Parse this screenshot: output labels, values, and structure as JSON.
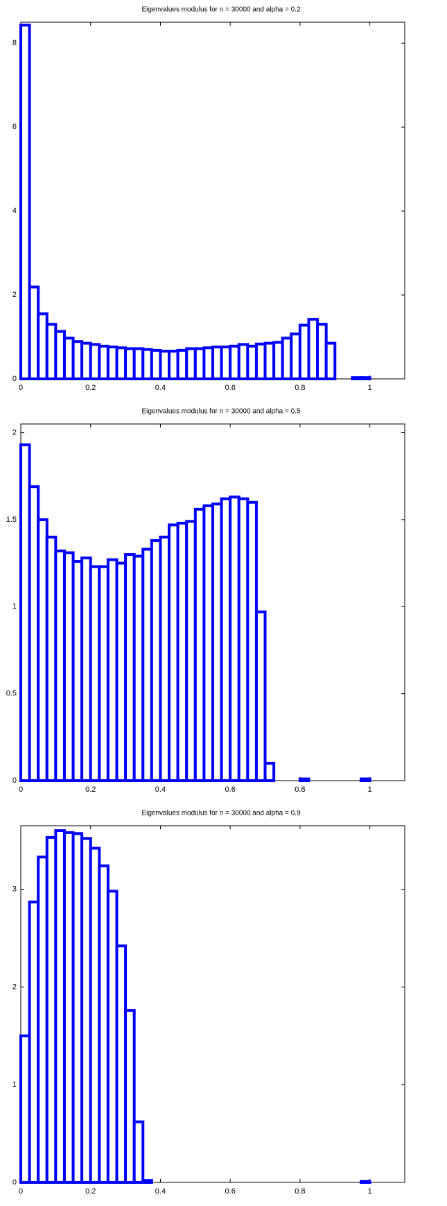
{
  "chart_data": [
    {
      "type": "histogram",
      "title": "Eigenvalues modulus for n = 30000 and alpha = 0.2",
      "color": "#0000ff",
      "bins": [
        0,
        0.025,
        0.05,
        0.075,
        0.1,
        0.125,
        0.15,
        0.175,
        0.2,
        0.225,
        0.25,
        0.275,
        0.3,
        0.325,
        0.35,
        0.375,
        0.4,
        0.425,
        0.45,
        0.475,
        0.5,
        0.525,
        0.55,
        0.575,
        0.6,
        0.625,
        0.65,
        0.675,
        0.7,
        0.725,
        0.75,
        0.775,
        0.8,
        0.825,
        0.85,
        0.875,
        0.9,
        0.925,
        0.95,
        0.975,
        1
      ],
      "values": [
        8.43,
        2.19,
        1.55,
        1.3,
        1.13,
        0.97,
        0.89,
        0.85,
        0.82,
        0.78,
        0.76,
        0.74,
        0.72,
        0.72,
        0.7,
        0.68,
        0.66,
        0.66,
        0.68,
        0.72,
        0.72,
        0.74,
        0.76,
        0.76,
        0.78,
        0.82,
        0.78,
        0.83,
        0.85,
        0.87,
        0.97,
        1.07,
        1.28,
        1.42,
        1.3,
        0.85,
        0,
        0,
        0.03,
        0.03
      ],
      "xlim": [
        0,
        1.1
      ],
      "ylim": [
        0,
        8.5
      ],
      "xticks": [
        0,
        0.2,
        0.4,
        0.6,
        0.8,
        1
      ],
      "yticks": [
        0,
        2,
        4,
        6,
        8
      ]
    },
    {
      "type": "histogram",
      "title": "Eigenvalues modulus for n = 30000 and alpha = 0.5",
      "color": "#0000ff",
      "bins": [
        0,
        0.025,
        0.05,
        0.075,
        0.1,
        0.125,
        0.15,
        0.175,
        0.2,
        0.225,
        0.25,
        0.275,
        0.3,
        0.325,
        0.35,
        0.375,
        0.4,
        0.425,
        0.45,
        0.475,
        0.5,
        0.525,
        0.55,
        0.575,
        0.6,
        0.625,
        0.65,
        0.675,
        0.7,
        0.725,
        0.75,
        0.775,
        0.8,
        0.825,
        0.85,
        0.875,
        0.9,
        0.925,
        0.95,
        0.975,
        1
      ],
      "values": [
        1.93,
        1.69,
        1.5,
        1.4,
        1.32,
        1.31,
        1.26,
        1.28,
        1.23,
        1.23,
        1.27,
        1.25,
        1.3,
        1.29,
        1.33,
        1.38,
        1.4,
        1.47,
        1.48,
        1.49,
        1.56,
        1.58,
        1.59,
        1.62,
        1.63,
        1.62,
        1.6,
        0.97,
        0.1,
        0,
        0,
        0,
        0.01,
        0,
        0,
        0,
        0,
        0,
        0,
        0.01
      ],
      "xlim": [
        0,
        1.1
      ],
      "ylim": [
        0,
        2.05
      ],
      "xticks": [
        0,
        0.2,
        0.4,
        0.6,
        0.8,
        1
      ],
      "yticks": [
        0,
        0.5,
        1,
        1.5,
        2
      ]
    },
    {
      "type": "histogram",
      "title": "Eigenvalues modulus for n = 30000 and alpha = 0.9",
      "color": "#0000ff",
      "bins": [
        0,
        0.025,
        0.05,
        0.075,
        0.1,
        0.125,
        0.15,
        0.175,
        0.2,
        0.225,
        0.25,
        0.275,
        0.3,
        0.325,
        0.35,
        0.375,
        0.4,
        0.425,
        0.45,
        0.475,
        0.5,
        0.525,
        0.55,
        0.575,
        0.6,
        0.625,
        0.65,
        0.675,
        0.7,
        0.725,
        0.75,
        0.775,
        0.8,
        0.825,
        0.85,
        0.875,
        0.9,
        0.925,
        0.95,
        0.975,
        1
      ],
      "values": [
        1.5,
        2.87,
        3.33,
        3.53,
        3.6,
        3.58,
        3.57,
        3.52,
        3.42,
        3.24,
        2.98,
        2.42,
        1.76,
        0.62,
        0.02,
        0,
        0,
        0,
        0,
        0,
        0,
        0,
        0,
        0,
        0,
        0,
        0,
        0,
        0,
        0,
        0,
        0,
        0,
        0,
        0,
        0,
        0,
        0,
        0,
        0.01
      ],
      "xlim": [
        0,
        1.1
      ],
      "ylim": [
        0,
        3.65
      ],
      "xticks": [
        0,
        0.2,
        0.4,
        0.6,
        0.8,
        1
      ],
      "yticks": [
        0,
        1,
        2,
        3
      ]
    }
  ]
}
